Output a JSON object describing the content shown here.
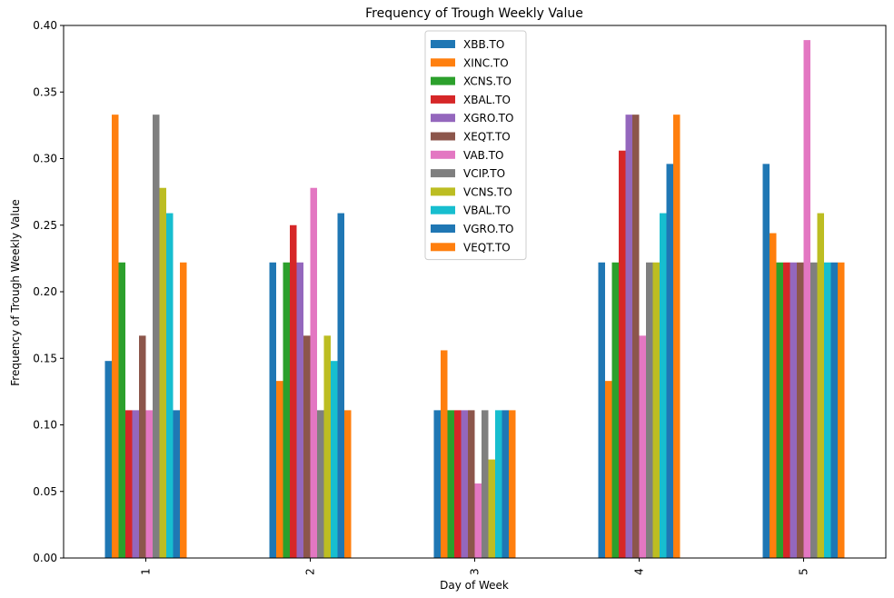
{
  "chart_data": {
    "type": "bar",
    "title": "Frequency of Trough Weekly Value",
    "xlabel": "Day of Week",
    "ylabel": "Frequency of Trough Weekly Value",
    "categories": [
      "1",
      "2",
      "3",
      "4",
      "5"
    ],
    "ylim": [
      0,
      0.4
    ],
    "yticks": [
      "0.00",
      "0.05",
      "0.10",
      "0.15",
      "0.20",
      "0.25",
      "0.30",
      "0.35",
      "0.40"
    ],
    "grid": false,
    "legend_position": "top-center",
    "series": [
      {
        "name": "XBB.TO",
        "color": "#1f77b4",
        "values": [
          0.148,
          0.222,
          0.111,
          0.222,
          0.296
        ]
      },
      {
        "name": "XINC.TO",
        "color": "#ff7f0e",
        "values": [
          0.333,
          0.133,
          0.156,
          0.133,
          0.244
        ]
      },
      {
        "name": "XCNS.TO",
        "color": "#2ca02c",
        "values": [
          0.222,
          0.222,
          0.111,
          0.222,
          0.222
        ]
      },
      {
        "name": "XBAL.TO",
        "color": "#d62728",
        "values": [
          0.111,
          0.25,
          0.111,
          0.306,
          0.222
        ]
      },
      {
        "name": "XGRO.TO",
        "color": "#9467bd",
        "values": [
          0.111,
          0.222,
          0.111,
          0.333,
          0.222
        ]
      },
      {
        "name": "XEQT.TO",
        "color": "#8c564b",
        "values": [
          0.167,
          0.167,
          0.111,
          0.333,
          0.222
        ]
      },
      {
        "name": "VAB.TO",
        "color": "#e377c2",
        "values": [
          0.111,
          0.278,
          0.056,
          0.167,
          0.389
        ]
      },
      {
        "name": "VCIP.TO",
        "color": "#7f7f7f",
        "values": [
          0.333,
          0.111,
          0.111,
          0.222,
          0.222
        ]
      },
      {
        "name": "VCNS.TO",
        "color": "#bcbd22",
        "values": [
          0.278,
          0.167,
          0.074,
          0.222,
          0.259
        ]
      },
      {
        "name": "VBAL.TO",
        "color": "#17becf",
        "values": [
          0.259,
          0.148,
          0.111,
          0.259,
          0.222
        ]
      },
      {
        "name": "VGRO.TO",
        "color": "#1f77b4",
        "values": [
          0.111,
          0.259,
          0.111,
          0.296,
          0.222
        ]
      },
      {
        "name": "VEQT.TO",
        "color": "#ff7f0e",
        "values": [
          0.222,
          0.111,
          0.111,
          0.333,
          0.222
        ]
      }
    ]
  }
}
